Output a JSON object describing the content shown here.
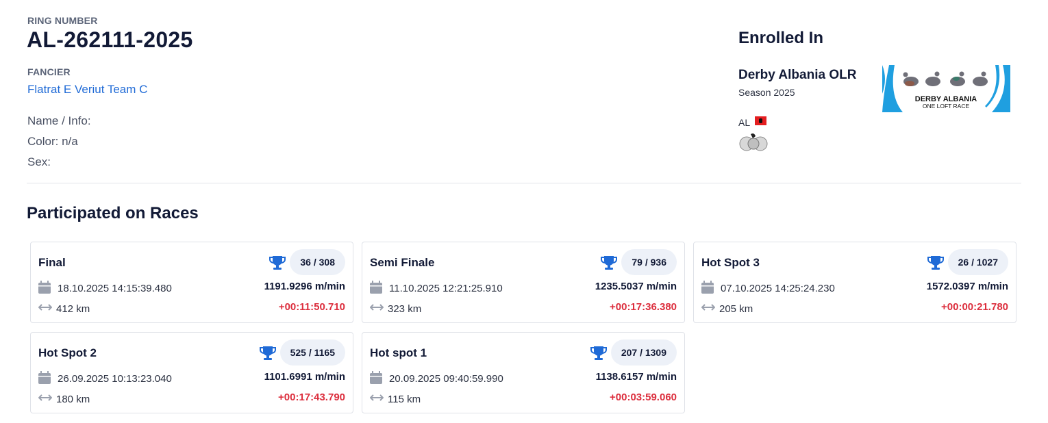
{
  "ring": {
    "label": "RING NUMBER",
    "number": "AL-262111-2025"
  },
  "fancier": {
    "label": "FANCIER",
    "name": "Flatrat E Veriut Team C"
  },
  "info": {
    "name": "Name / Info:",
    "color": "Color: n/a",
    "sex": "Sex:"
  },
  "enrolled": {
    "title": "Enrolled In",
    "race_name": "Derby Albania OLR",
    "season": "Season 2025",
    "country": "AL",
    "logo_text_1": "DERBY ALBANIA",
    "logo_text_2": "ONE LOFT RACE",
    "flag_icon": "albania-flag-icon",
    "accent": "#1f9fe0"
  },
  "races_title": "Participated on Races",
  "colors": {
    "accent": "#1f6ad6",
    "negative": "#dc2e3d",
    "pill_bg": "#edf1f8"
  },
  "races": [
    {
      "name": "Final",
      "rank": "36 / 308",
      "date": "18.10.2025 14:15:39.480",
      "speed": "1191.9296 m/min",
      "distance": "412 km",
      "delta": "+00:11:50.710"
    },
    {
      "name": "Semi Finale",
      "rank": "79 / 936",
      "date": "11.10.2025 12:21:25.910",
      "speed": "1235.5037 m/min",
      "distance": "323 km",
      "delta": "+00:17:36.380"
    },
    {
      "name": "Hot Spot 3",
      "rank": "26 / 1027",
      "date": "07.10.2025 14:25:24.230",
      "speed": "1572.0397 m/min",
      "distance": "205 km",
      "delta": "+00:00:21.780"
    },
    {
      "name": "Hot Spot 2",
      "rank": "525 / 1165",
      "date": "26.09.2025 10:13:23.040",
      "speed": "1101.6991 m/min",
      "distance": "180 km",
      "delta": "+00:17:43.790"
    },
    {
      "name": "Hot spot 1",
      "rank": "207 / 1309",
      "date": "20.09.2025 09:40:59.990",
      "speed": "1138.6157 m/min",
      "distance": "115 km",
      "delta": "+00:03:59.060"
    }
  ]
}
